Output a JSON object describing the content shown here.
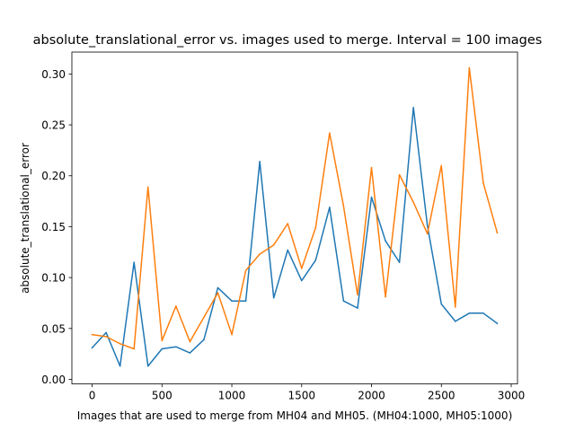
{
  "chart_data": {
    "type": "line",
    "title": "absolute_translational_error vs. images used to merge. Interval = 100 images",
    "xlabel": "Images that are used to merge from MH04 and MH05. (MH04:1000, MH05:1000)",
    "ylabel": "absolute_translational_error",
    "xlim": [
      -145,
      3045
    ],
    "ylim": [
      -0.0045,
      0.3215
    ],
    "xticks": [
      0,
      500,
      1000,
      1500,
      2000,
      2500,
      3000
    ],
    "xtick_labels": [
      "0",
      "500",
      "1000",
      "1500",
      "2000",
      "2500",
      "3000"
    ],
    "yticks": [
      0.0,
      0.05,
      0.1,
      0.15,
      0.2,
      0.25,
      0.3
    ],
    "ytick_labels": [
      "0.00",
      "0.05",
      "0.10",
      "0.15",
      "0.20",
      "0.25",
      "0.30"
    ],
    "grid": false,
    "x": [
      0,
      100,
      200,
      300,
      400,
      500,
      600,
      700,
      800,
      900,
      1000,
      1100,
      1200,
      1300,
      1400,
      1500,
      1600,
      1700,
      1800,
      1900,
      2000,
      2100,
      2200,
      2300,
      2400,
      2500,
      2600,
      2700,
      2800,
      2900
    ],
    "series": [
      {
        "color": "#1f77b4",
        "values": [
          0.031,
          0.046,
          0.013,
          0.115,
          0.013,
          0.03,
          0.032,
          0.026,
          0.039,
          0.09,
          0.077,
          0.077,
          0.214,
          0.08,
          0.127,
          0.097,
          0.117,
          0.169,
          0.077,
          0.07,
          0.179,
          0.136,
          0.115,
          0.267,
          0.151,
          0.074,
          0.057,
          0.065,
          0.065,
          0.055
        ]
      },
      {
        "color": "#ff7f0e",
        "values": [
          0.044,
          0.042,
          0.035,
          0.03,
          0.189,
          0.038,
          0.072,
          0.037,
          0.061,
          0.085,
          0.044,
          0.107,
          0.123,
          0.132,
          0.153,
          0.109,
          0.149,
          0.242,
          0.17,
          0.083,
          0.208,
          0.081,
          0.201,
          0.174,
          0.143,
          0.21,
          0.071,
          0.306,
          0.193,
          0.144
        ]
      }
    ]
  }
}
